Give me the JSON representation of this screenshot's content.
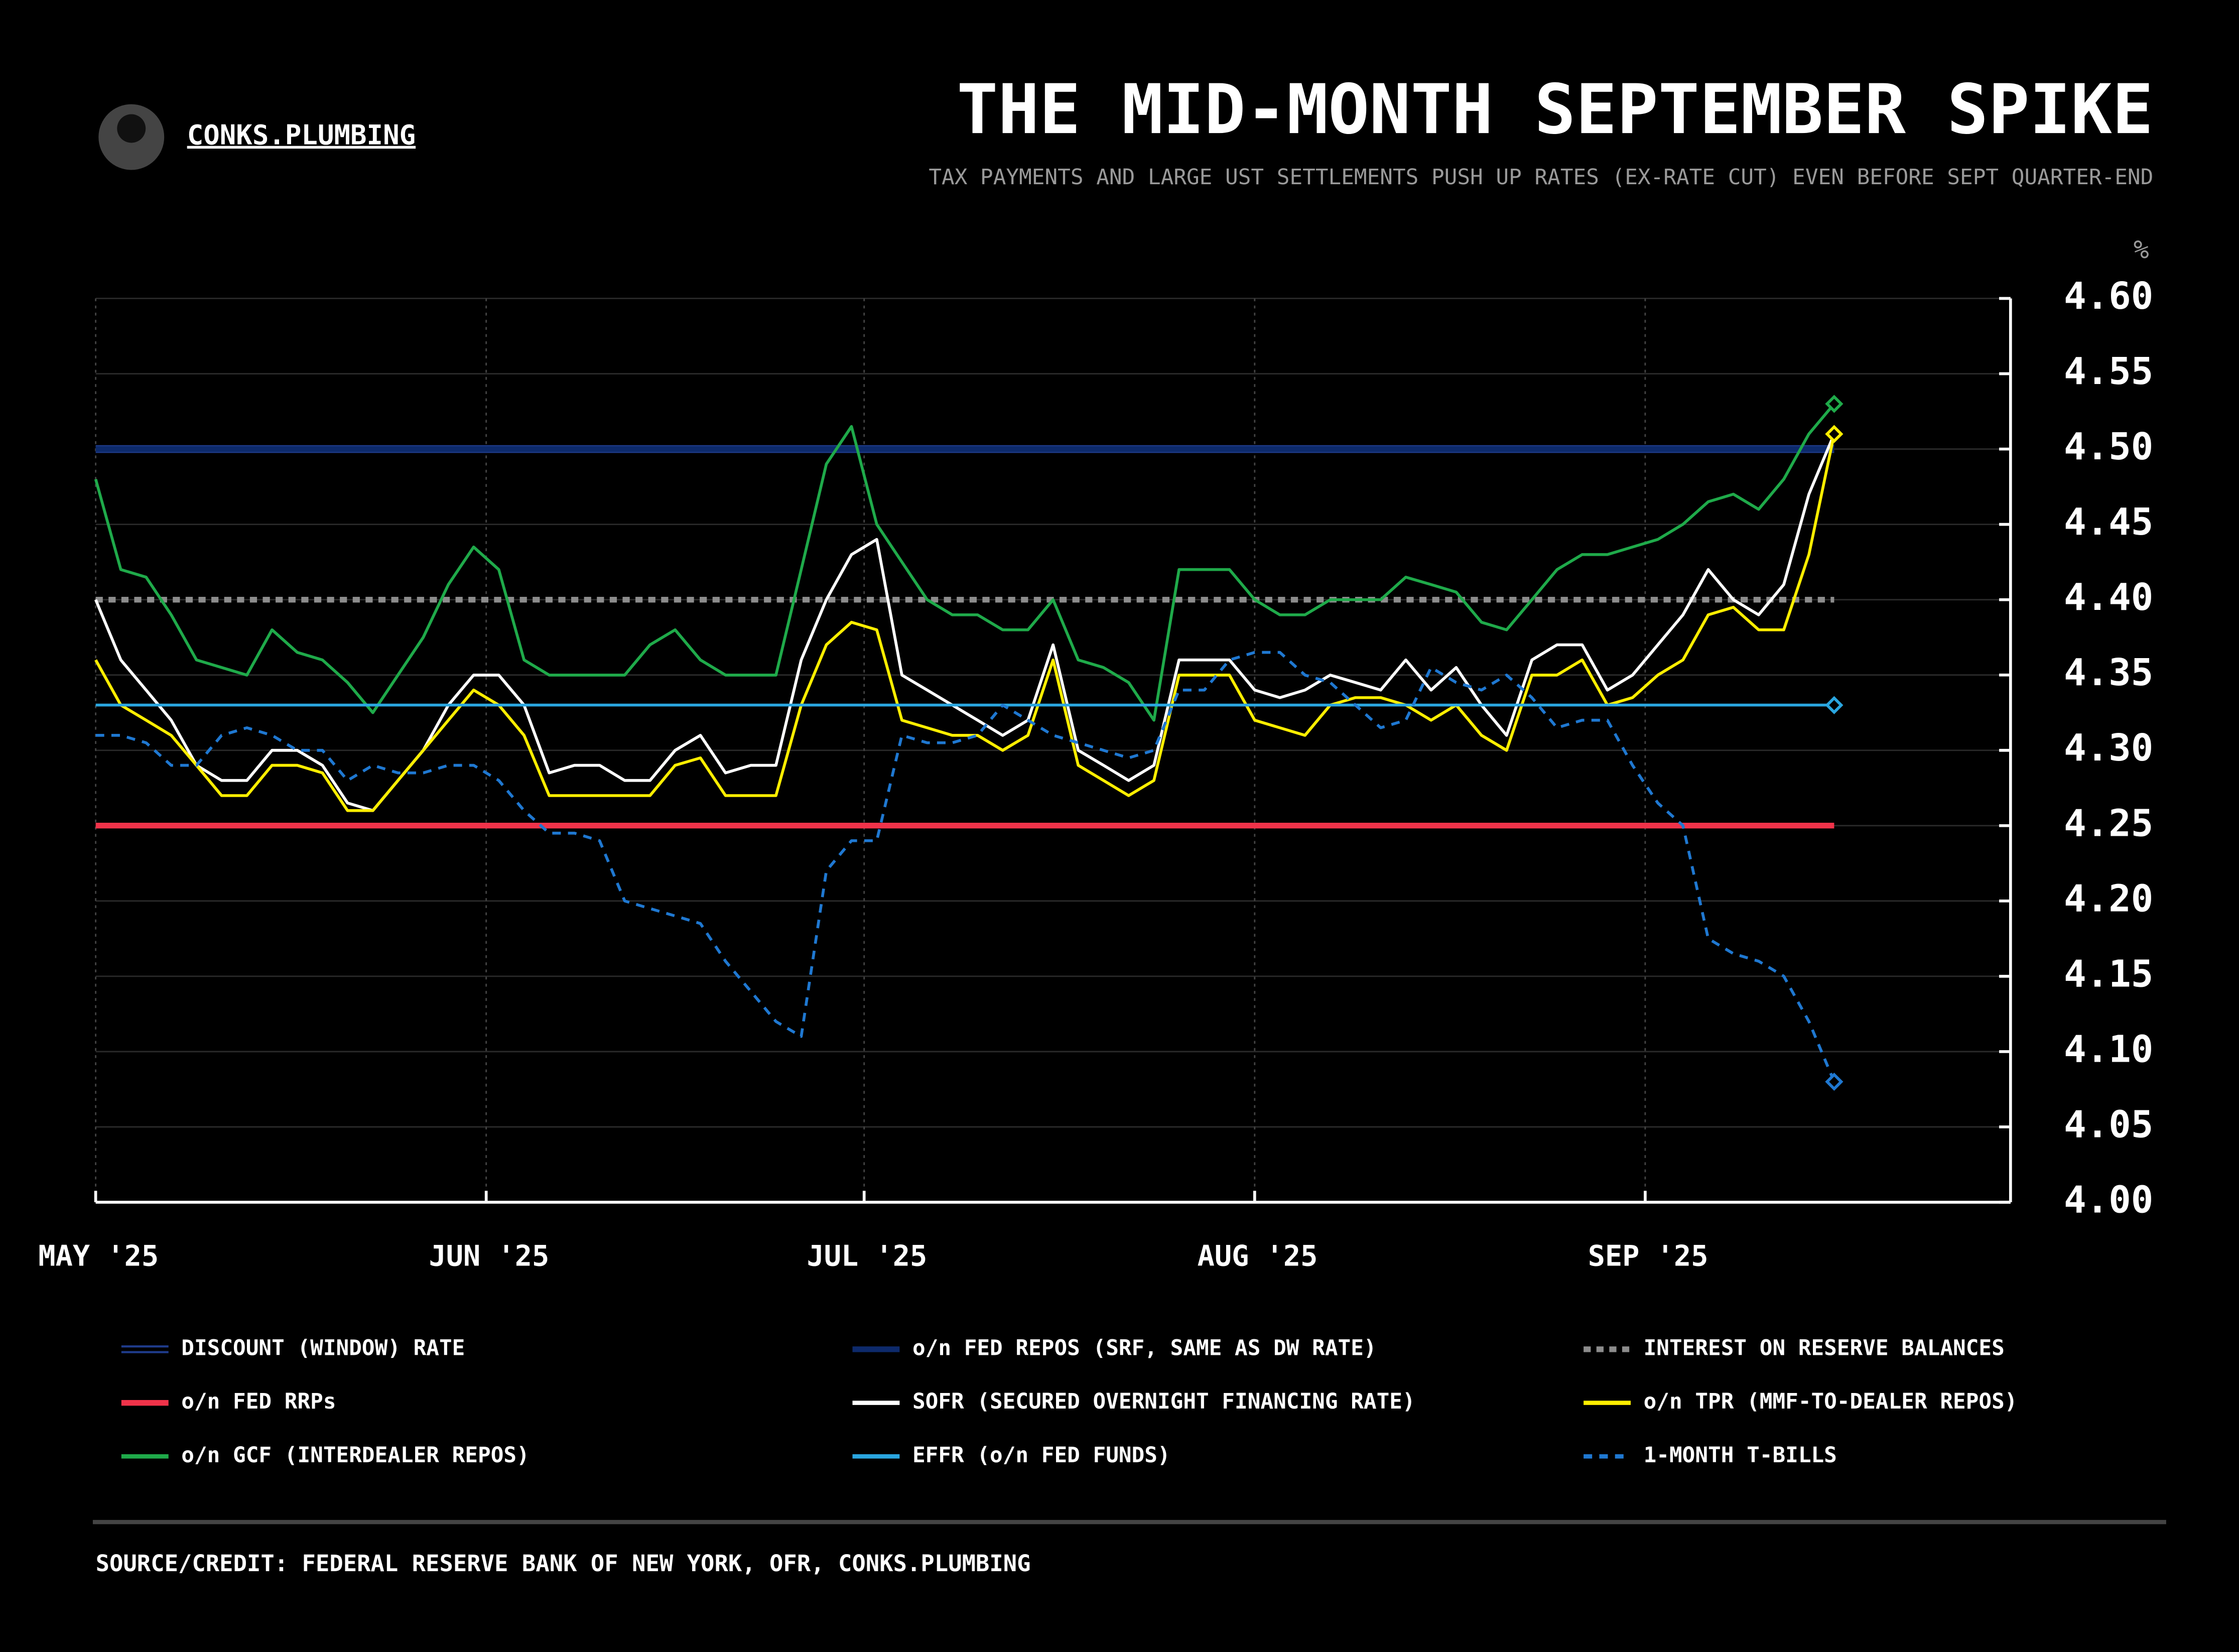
{
  "header": {
    "brand": "CONKS.PLUMBING"
  },
  "chart_data": {
    "type": "line",
    "title": "THE MID-MONTH SEPTEMBER SPIKE",
    "subtitle": "TAX PAYMENTS AND LARGE UST SETTLEMENTS PUSH UP RATES (EX-RATE CUT) EVEN BEFORE SEPT QUARTER-END",
    "y_unit": "%",
    "source": "SOURCE/CREDIT: FEDERAL RESERVE BANK OF NEW YORK, OFR, CONKS.PLUMBING",
    "xlim": [
      0,
      152
    ],
    "xticks": [
      {
        "value": 0,
        "label": "MAY '25"
      },
      {
        "value": 31,
        "label": "JUN '25"
      },
      {
        "value": 61,
        "label": "JUL '25"
      },
      {
        "value": 92,
        "label": "AUG '25"
      },
      {
        "value": 123,
        "label": "SEP '25"
      }
    ],
    "ylim": [
      4.0,
      4.6
    ],
    "yticks": [
      {
        "value": 4.6,
        "label": "4.60"
      },
      {
        "value": 4.55,
        "label": "4.55"
      },
      {
        "value": 4.5,
        "label": "4.50"
      },
      {
        "value": 4.45,
        "label": "4.45"
      },
      {
        "value": 4.4,
        "label": "4.40"
      },
      {
        "value": 4.35,
        "label": "4.35"
      },
      {
        "value": 4.3,
        "label": "4.30"
      },
      {
        "value": 4.25,
        "label": "4.25"
      },
      {
        "value": 4.2,
        "label": "4.20"
      },
      {
        "value": 4.15,
        "label": "4.15"
      },
      {
        "value": 4.1,
        "label": "4.10"
      },
      {
        "value": 4.05,
        "label": "4.05"
      },
      {
        "value": 4.0,
        "label": "4.00"
      }
    ],
    "grid": true,
    "x": [
      0,
      2,
      4,
      6,
      8,
      10,
      12,
      14,
      16,
      18,
      20,
      22,
      24,
      26,
      28,
      30,
      32,
      34,
      36,
      38,
      40,
      42,
      44,
      46,
      48,
      50,
      52,
      54,
      56,
      58,
      60,
      62,
      64,
      66,
      68,
      70,
      72,
      74,
      76,
      78,
      80,
      82,
      84,
      86,
      88,
      90,
      92,
      94,
      96,
      98,
      100,
      102,
      104,
      106,
      108,
      110,
      112,
      114,
      116,
      118,
      120,
      122,
      124,
      126,
      128,
      130,
      132,
      134,
      136,
      138
    ],
    "series": [
      {
        "name": "DISCOUNT (WINDOW) RATE",
        "color": "#1f3c8c",
        "values": [
          4.5,
          4.5,
          4.5,
          4.5,
          4.5,
          4.5,
          4.5,
          4.5,
          4.5,
          4.5,
          4.5,
          4.5,
          4.5,
          4.5,
          4.5,
          4.5,
          4.5,
          4.5,
          4.5,
          4.5,
          4.5,
          4.5,
          4.5,
          4.5,
          4.5,
          4.5,
          4.5,
          4.5,
          4.5,
          4.5,
          4.5,
          4.5,
          4.5,
          4.5,
          4.5,
          4.5,
          4.5,
          4.5,
          4.5,
          4.5,
          4.5,
          4.5,
          4.5,
          4.5,
          4.5,
          4.5,
          4.5,
          4.5,
          4.5,
          4.5,
          4.5,
          4.5,
          4.5,
          4.5,
          4.5,
          4.5,
          4.5,
          4.5,
          4.5,
          4.5,
          4.5,
          4.5,
          4.5,
          4.5,
          4.5,
          4.5,
          4.5,
          4.5,
          4.5,
          4.5
        ]
      },
      {
        "name": "o/n FED REPOS (SRF, SAME AS DW RATE)",
        "color": "#0d2a6b",
        "values": [
          4.5,
          4.5,
          4.5,
          4.5,
          4.5,
          4.5,
          4.5,
          4.5,
          4.5,
          4.5,
          4.5,
          4.5,
          4.5,
          4.5,
          4.5,
          4.5,
          4.5,
          4.5,
          4.5,
          4.5,
          4.5,
          4.5,
          4.5,
          4.5,
          4.5,
          4.5,
          4.5,
          4.5,
          4.5,
          4.5,
          4.5,
          4.5,
          4.5,
          4.5,
          4.5,
          4.5,
          4.5,
          4.5,
          4.5,
          4.5,
          4.5,
          4.5,
          4.5,
          4.5,
          4.5,
          4.5,
          4.5,
          4.5,
          4.5,
          4.5,
          4.5,
          4.5,
          4.5,
          4.5,
          4.5,
          4.5,
          4.5,
          4.5,
          4.5,
          4.5,
          4.5,
          4.5,
          4.5,
          4.5,
          4.5,
          4.5,
          4.5,
          4.5,
          4.5,
          4.5
        ]
      },
      {
        "name": "INTEREST ON RESERVE BALANCES",
        "color": "#8c8c8c",
        "values": [
          4.4,
          4.4,
          4.4,
          4.4,
          4.4,
          4.4,
          4.4,
          4.4,
          4.4,
          4.4,
          4.4,
          4.4,
          4.4,
          4.4,
          4.4,
          4.4,
          4.4,
          4.4,
          4.4,
          4.4,
          4.4,
          4.4,
          4.4,
          4.4,
          4.4,
          4.4,
          4.4,
          4.4,
          4.4,
          4.4,
          4.4,
          4.4,
          4.4,
          4.4,
          4.4,
          4.4,
          4.4,
          4.4,
          4.4,
          4.4,
          4.4,
          4.4,
          4.4,
          4.4,
          4.4,
          4.4,
          4.4,
          4.4,
          4.4,
          4.4,
          4.4,
          4.4,
          4.4,
          4.4,
          4.4,
          4.4,
          4.4,
          4.4,
          4.4,
          4.4,
          4.4,
          4.4,
          4.4,
          4.4,
          4.4,
          4.4,
          4.4,
          4.4,
          4.4,
          4.4
        ]
      },
      {
        "name": "o/n FED RRPs",
        "color": "#f0334a",
        "values": [
          4.25,
          4.25,
          4.25,
          4.25,
          4.25,
          4.25,
          4.25,
          4.25,
          4.25,
          4.25,
          4.25,
          4.25,
          4.25,
          4.25,
          4.25,
          4.25,
          4.25,
          4.25,
          4.25,
          4.25,
          4.25,
          4.25,
          4.25,
          4.25,
          4.25,
          4.25,
          4.25,
          4.25,
          4.25,
          4.25,
          4.25,
          4.25,
          4.25,
          4.25,
          4.25,
          4.25,
          4.25,
          4.25,
          4.25,
          4.25,
          4.25,
          4.25,
          4.25,
          4.25,
          4.25,
          4.25,
          4.25,
          4.25,
          4.25,
          4.25,
          4.25,
          4.25,
          4.25,
          4.25,
          4.25,
          4.25,
          4.25,
          4.25,
          4.25,
          4.25,
          4.25,
          4.25,
          4.25,
          4.25,
          4.25,
          4.25,
          4.25,
          4.25,
          4.25,
          4.25
        ]
      },
      {
        "name": "SOFR (SECURED OVERNIGHT FINANCING RATE)",
        "color": "#ffffff",
        "values": [
          4.4,
          4.36,
          4.34,
          4.32,
          4.29,
          4.28,
          4.28,
          4.3,
          4.3,
          4.29,
          4.265,
          4.26,
          4.28,
          4.3,
          4.33,
          4.35,
          4.35,
          4.33,
          4.285,
          4.29,
          4.29,
          4.28,
          4.28,
          4.3,
          4.31,
          4.285,
          4.29,
          4.29,
          4.36,
          4.4,
          4.43,
          4.44,
          4.35,
          4.34,
          4.33,
          4.32,
          4.31,
          4.32,
          4.37,
          4.3,
          4.29,
          4.28,
          4.29,
          4.36,
          4.36,
          4.36,
          4.34,
          4.335,
          4.34,
          4.35,
          4.345,
          4.34,
          4.36,
          4.34,
          4.355,
          4.33,
          4.31,
          4.36,
          4.37,
          4.37,
          4.34,
          4.35,
          4.37,
          4.39,
          4.42,
          4.4,
          4.39,
          4.41,
          4.47,
          4.51
        ]
      },
      {
        "name": "o/n TPR (MMF-TO-DEALER REPOS)",
        "color": "#ffee00",
        "end_marker": true,
        "values": [
          4.36,
          4.33,
          4.32,
          4.31,
          4.29,
          4.27,
          4.27,
          4.29,
          4.29,
          4.285,
          4.26,
          4.26,
          4.28,
          4.3,
          4.32,
          4.34,
          4.33,
          4.31,
          4.27,
          4.27,
          4.27,
          4.27,
          4.27,
          4.29,
          4.295,
          4.27,
          4.27,
          4.27,
          4.33,
          4.37,
          4.385,
          4.38,
          4.32,
          4.315,
          4.31,
          4.31,
          4.3,
          4.31,
          4.36,
          4.29,
          4.28,
          4.27,
          4.28,
          4.35,
          4.35,
          4.35,
          4.32,
          4.315,
          4.31,
          4.33,
          4.335,
          4.335,
          4.33,
          4.32,
          4.33,
          4.31,
          4.3,
          4.35,
          4.35,
          4.36,
          4.33,
          4.335,
          4.35,
          4.36,
          4.39,
          4.395,
          4.38,
          4.38,
          4.43,
          4.51
        ]
      },
      {
        "name": "o/n GCF (INTERDEALER REPOS)",
        "color": "#1faa4a",
        "end_marker": true,
        "values": [
          4.48,
          4.42,
          4.415,
          4.39,
          4.36,
          4.355,
          4.35,
          4.38,
          4.365,
          4.36,
          4.345,
          4.325,
          4.35,
          4.375,
          4.41,
          4.435,
          4.42,
          4.36,
          4.35,
          4.35,
          4.35,
          4.35,
          4.37,
          4.38,
          4.36,
          4.35,
          4.35,
          4.35,
          4.42,
          4.49,
          4.515,
          4.45,
          4.425,
          4.4,
          4.39,
          4.39,
          4.38,
          4.38,
          4.4,
          4.36,
          4.355,
          4.345,
          4.32,
          4.42,
          4.42,
          4.42,
          4.4,
          4.39,
          4.39,
          4.4,
          4.4,
          4.4,
          4.415,
          4.41,
          4.405,
          4.385,
          4.38,
          4.4,
          4.42,
          4.43,
          4.43,
          4.435,
          4.44,
          4.45,
          4.465,
          4.47,
          4.46,
          4.48,
          4.51,
          4.53
        ]
      },
      {
        "name": "EFFR (o/n FED FUNDS)",
        "color": "#2aa6e0",
        "end_marker": true,
        "values": [
          4.33,
          4.33,
          4.33,
          4.33,
          4.33,
          4.33,
          4.33,
          4.33,
          4.33,
          4.33,
          4.33,
          4.33,
          4.33,
          4.33,
          4.33,
          4.33,
          4.33,
          4.33,
          4.33,
          4.33,
          4.33,
          4.33,
          4.33,
          4.33,
          4.33,
          4.33,
          4.33,
          4.33,
          4.33,
          4.33,
          4.33,
          4.33,
          4.33,
          4.33,
          4.33,
          4.33,
          4.33,
          4.33,
          4.33,
          4.33,
          4.33,
          4.33,
          4.33,
          4.33,
          4.33,
          4.33,
          4.33,
          4.33,
          4.33,
          4.33,
          4.33,
          4.33,
          4.33,
          4.33,
          4.33,
          4.33,
          4.33,
          4.33,
          4.33,
          4.33,
          4.33,
          4.33,
          4.33,
          4.33,
          4.33,
          4.33,
          4.33,
          4.33,
          4.33,
          4.33
        ]
      },
      {
        "name": "1-MONTH T-BILLS",
        "color": "#1f78d1",
        "end_marker": true,
        "values": [
          4.31,
          4.31,
          4.305,
          4.29,
          4.29,
          4.31,
          4.315,
          4.31,
          4.3,
          4.3,
          4.28,
          4.29,
          4.285,
          4.285,
          4.29,
          4.29,
          4.28,
          4.26,
          4.245,
          4.245,
          4.24,
          4.2,
          4.195,
          4.19,
          4.185,
          4.16,
          4.14,
          4.12,
          4.11,
          4.22,
          4.24,
          4.24,
          4.31,
          4.305,
          4.305,
          4.31,
          4.33,
          4.32,
          4.31,
          4.305,
          4.3,
          4.295,
          4.3,
          4.34,
          4.34,
          4.36,
          4.365,
          4.365,
          4.35,
          4.345,
          4.33,
          4.315,
          4.32,
          4.355,
          4.345,
          4.34,
          4.35,
          4.335,
          4.315,
          4.32,
          4.32,
          4.29,
          4.265,
          4.25,
          4.175,
          4.165,
          4.16,
          4.15,
          4.12,
          4.08
        ]
      }
    ]
  }
}
